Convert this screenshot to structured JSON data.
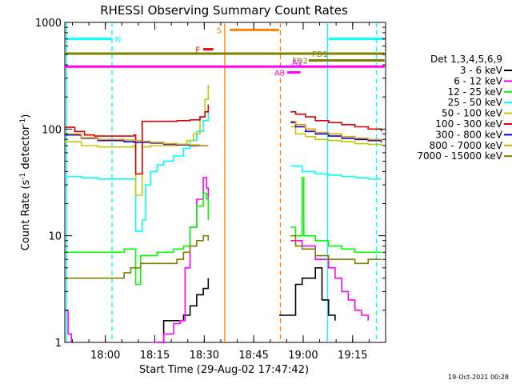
{
  "chart_data": {
    "type": "line",
    "title": "RHESSI Observing Summary Count Rates",
    "xlabel": "Start Time (29-Aug-02 17:47:42)",
    "ylabel_main": "Count Rate (s",
    "ylabel_sup1": "-1",
    "ylabel_mid": " detector",
    "ylabel_sup2": "-1",
    "ylabel_end": ")",
    "x_unit": "minutes after 17:47:42",
    "xlim": [
      0,
      97.3
    ],
    "ylim": [
      1,
      1000
    ],
    "yscale": "log",
    "x_ticks": [
      {
        "label": "18:00",
        "x": 12.3
      },
      {
        "label": "18:15",
        "x": 27.3
      },
      {
        "label": "18:30",
        "x": 42.3
      },
      {
        "label": "18:45",
        "x": 57.3
      },
      {
        "label": "19:00",
        "x": 72.3
      },
      {
        "label": "19:15",
        "x": 87.3
      }
    ],
    "y_ticks": [
      {
        "label": "1",
        "y": 1
      },
      {
        "label": "10",
        "y": 10
      },
      {
        "label": "100",
        "y": 100
      },
      {
        "label": "1000",
        "y": 1000
      }
    ],
    "legend": {
      "title": "Det 1,3,4,5,6,9",
      "placement": "right-outside",
      "entries": [
        {
          "label": "3 - 6 keV",
          "color": "#000000"
        },
        {
          "label": "6 - 12 keV",
          "color": "#ff00ff"
        },
        {
          "label": "12 - 25 keV",
          "color": "#00ff00"
        },
        {
          "label": "25 - 50 keV",
          "color": "#00ffff"
        },
        {
          "label": "50 - 100 keV",
          "color": "#c8c800"
        },
        {
          "label": "100 - 300 keV",
          "color": "#dd0000"
        },
        {
          "label": "300 - 800 keV",
          "color": "#0000dd"
        },
        {
          "label": "800 - 7000 keV",
          "color": "#e8a000"
        },
        {
          "label": "7000 - 15000 keV",
          "color": "#808000"
        }
      ]
    },
    "series": [
      {
        "name": "3 - 6 keV",
        "color": "#000000",
        "segments": [
          [
            [
              28,
              1
            ],
            [
              30,
              1.6
            ],
            [
              33,
              1.6
            ],
            [
              36,
              1.8
            ],
            [
              38,
              2.2
            ],
            [
              40,
              2.8
            ],
            [
              42,
              3.2
            ],
            [
              43.5,
              4
            ]
          ],
          [
            [
              65,
              1.8
            ],
            [
              70,
              3.5
            ],
            [
              72,
              4
            ],
            [
              74,
              4
            ],
            [
              76,
              5
            ],
            [
              78,
              2.5
            ],
            [
              80,
              1.8
            ],
            [
              82,
              1.6
            ]
          ]
        ]
      },
      {
        "name": "6 - 12 keV",
        "color": "#ff00ff",
        "segments": [
          [
            [
              0,
              2
            ],
            [
              1,
              1.2
            ],
            [
              2,
              1
            ]
          ],
          [
            [
              26,
              1
            ],
            [
              30,
              1.2
            ],
            [
              33,
              1.5
            ],
            [
              35,
              1.6
            ],
            [
              36.5,
              5
            ],
            [
              38,
              12
            ],
            [
              40,
              22
            ],
            [
              42,
              35
            ],
            [
              43,
              28
            ],
            [
              43.5,
              18
            ]
          ],
          [
            [
              68.5,
              9
            ],
            [
              72,
              8
            ],
            [
              76,
              6
            ],
            [
              80,
              5
            ],
            [
              82,
              4
            ],
            [
              84,
              3
            ],
            [
              86,
              2.5
            ],
            [
              88,
              2
            ],
            [
              90,
              1.8
            ],
            [
              92,
              1.6
            ]
          ]
        ]
      },
      {
        "name": "12 - 25 keV",
        "color": "#00ff00",
        "segments": [
          [
            [
              0,
              7
            ],
            [
              5,
              7
            ],
            [
              10,
              7
            ],
            [
              15,
              7
            ],
            [
              18,
              7.5
            ],
            [
              20,
              7.5
            ],
            [
              21,
              7.5
            ],
            [
              21.5,
              3.5
            ],
            [
              22.5,
              3.5
            ],
            [
              23,
              6.5
            ],
            [
              28,
              7
            ],
            [
              33,
              7.5
            ],
            [
              36,
              8
            ],
            [
              38,
              12
            ],
            [
              40,
              19
            ],
            [
              42,
              25
            ],
            [
              43,
              22
            ],
            [
              43.5,
              14
            ]
          ],
          [
            [
              68.5,
              12
            ],
            [
              70,
              10
            ],
            [
              72,
              35
            ],
            [
              72.5,
              10
            ],
            [
              76,
              9
            ],
            [
              80,
              8
            ],
            [
              84,
              7.5
            ],
            [
              88,
              7
            ],
            [
              92,
              7
            ],
            [
              96,
              7
            ]
          ]
        ]
      },
      {
        "name": "25 - 50 keV",
        "color": "#00ffff",
        "segments": [
          [
            [
              0,
              36
            ],
            [
              5,
              35
            ],
            [
              10,
              34
            ],
            [
              15,
              34
            ],
            [
              18,
              34
            ],
            [
              20,
              34
            ],
            [
              21,
              34
            ],
            [
              21.5,
              11
            ],
            [
              23,
              11
            ],
            [
              23.5,
              14
            ],
            [
              24.5,
              30
            ],
            [
              26,
              40
            ],
            [
              28,
              46
            ],
            [
              30,
              50
            ],
            [
              33,
              56
            ],
            [
              36,
              66
            ],
            [
              38,
              78
            ],
            [
              40,
              95
            ],
            [
              42,
              120
            ],
            [
              43.5,
              150
            ]
          ],
          [
            [
              68.5,
              45
            ],
            [
              72,
              40
            ],
            [
              76,
              38
            ],
            [
              80,
              37
            ],
            [
              84,
              36
            ],
            [
              88,
              35
            ],
            [
              92,
              34
            ],
            [
              96,
              34
            ]
          ]
        ]
      },
      {
        "name": "50 - 100 keV",
        "color": "#c8c800",
        "segments": [
          [
            [
              0,
              76
            ],
            [
              5,
              70
            ],
            [
              10,
              68
            ],
            [
              15,
              68
            ],
            [
              18,
              68
            ],
            [
              21,
              70
            ],
            [
              21.5,
              24
            ],
            [
              23,
              24
            ],
            [
              23.5,
              68
            ],
            [
              26,
              70
            ],
            [
              30,
              70
            ],
            [
              34,
              72
            ],
            [
              37,
              78
            ],
            [
              39,
              90
            ],
            [
              41,
              130
            ],
            [
              42.5,
              190
            ],
            [
              43.5,
              260
            ]
          ],
          [
            [
              68.5,
              105
            ],
            [
              70,
              90
            ],
            [
              73,
              85
            ],
            [
              76,
              80
            ],
            [
              80,
              78
            ],
            [
              84,
              76
            ],
            [
              88,
              73
            ],
            [
              92,
              72
            ],
            [
              96,
              70
            ]
          ]
        ]
      },
      {
        "name": "100 - 300 keV",
        "color": "#dd0000",
        "segments": [
          [
            [
              0,
              104
            ],
            [
              3,
              95
            ],
            [
              6,
              88
            ],
            [
              9,
              86
            ],
            [
              12,
              86
            ],
            [
              15,
              86
            ],
            [
              18,
              86
            ],
            [
              21,
              88
            ],
            [
              21.5,
              38
            ],
            [
              23,
              38
            ],
            [
              23.5,
              118
            ],
            [
              26,
              118
            ],
            [
              30,
              118
            ],
            [
              34,
              120
            ],
            [
              38,
              122
            ],
            [
              41,
              130
            ],
            [
              42.5,
              145
            ],
            [
              43.5,
              170
            ]
          ],
          [
            [
              68.5,
              145
            ],
            [
              70,
              138
            ],
            [
              73,
              130
            ],
            [
              76,
              120
            ],
            [
              80,
              115
            ],
            [
              84,
              110
            ],
            [
              88,
              105
            ],
            [
              92,
              100
            ],
            [
              96,
              95
            ]
          ]
        ]
      },
      {
        "name": "300 - 800 keV",
        "color": "#0000dd",
        "segments": [
          [
            [
              0,
              88
            ],
            [
              5,
              82
            ],
            [
              10,
              78
            ],
            [
              15,
              78
            ],
            [
              18,
              76
            ],
            [
              21,
              75
            ],
            [
              23,
              75
            ],
            [
              26,
              74
            ],
            [
              30,
              72
            ],
            [
              34,
              71
            ],
            [
              38,
              70
            ],
            [
              41,
              70
            ],
            [
              43.5,
              70
            ]
          ],
          [
            [
              68.5,
              115
            ],
            [
              70,
              105
            ],
            [
              73,
              95
            ],
            [
              76,
              90
            ],
            [
              80,
              86
            ],
            [
              84,
              82
            ],
            [
              88,
              80
            ],
            [
              92,
              78
            ],
            [
              96,
              75
            ]
          ]
        ]
      },
      {
        "name": "800 - 7000 keV",
        "color": "#e8a000",
        "segments": [
          [
            [
              0,
              90
            ],
            [
              5,
              83
            ],
            [
              10,
              80
            ],
            [
              15,
              80
            ],
            [
              18,
              79
            ],
            [
              21,
              78
            ],
            [
              23,
              77
            ],
            [
              26,
              75
            ],
            [
              30,
              73
            ],
            [
              34,
              72
            ],
            [
              38,
              71
            ],
            [
              41,
              70
            ],
            [
              43.5,
              70
            ]
          ],
          [
            [
              68.5,
              118
            ],
            [
              70,
              110
            ],
            [
              73,
              100
            ],
            [
              76,
              93
            ],
            [
              80,
              90
            ],
            [
              84,
              85
            ],
            [
              88,
              82
            ],
            [
              92,
              80
            ],
            [
              96,
              78
            ]
          ]
        ]
      },
      {
        "name": "7000 - 15000 keV",
        "color": "#808000",
        "segments": [
          [
            [
              0,
              4
            ],
            [
              5,
              4
            ],
            [
              10,
              4
            ],
            [
              15,
              4
            ],
            [
              18,
              4.5
            ],
            [
              20,
              5
            ],
            [
              21.5,
              5
            ],
            [
              23,
              5.5
            ],
            [
              26,
              5.5
            ],
            [
              30,
              5.5
            ],
            [
              34,
              6
            ],
            [
              36,
              7
            ],
            [
              38,
              8
            ],
            [
              40,
              9
            ],
            [
              42,
              10
            ],
            [
              43.5,
              9
            ]
          ],
          [
            [
              68.5,
              10
            ],
            [
              70,
              8
            ],
            [
              72,
              7.5
            ],
            [
              76,
              6.5
            ],
            [
              80,
              6
            ],
            [
              84,
              6
            ],
            [
              88,
              5.5
            ],
            [
              92,
              6
            ],
            [
              96,
              6
            ]
          ]
        ]
      }
    ],
    "annotations": [
      {
        "label": "N",
        "type": "bar",
        "x0": 0.5,
        "x1": 14.3,
        "y": 700,
        "color": "#00ffff"
      },
      {
        "label": "",
        "type": "bar",
        "x0": 80,
        "x1": 97,
        "y": 700,
        "color": "#00ffff"
      },
      {
        "label": "F",
        "type": "bar",
        "x0": 42,
        "x1": 45,
        "y": 560,
        "color": "#ff0000"
      },
      {
        "label": "S",
        "type": "bar",
        "x0": 50,
        "x1": 65,
        "y": 850,
        "color": "#ff8000"
      },
      {
        "label": "FD1",
        "type": "bar",
        "x0": 0,
        "x1": 97,
        "y": 510,
        "color": "#808000"
      },
      {
        "label": "FD2",
        "type": "bar",
        "x0": 74,
        "x1": 97,
        "y": 440,
        "color": "#808000"
      },
      {
        "label": "A1",
        "type": "bar",
        "x0": 0,
        "x1": 97,
        "y": 385,
        "color": "#ff00ff"
      },
      {
        "label": "A3",
        "type": "bar",
        "x0": 67.5,
        "x1": 71.5,
        "y": 340,
        "color": "#ff00ff"
      }
    ],
    "vlines": [
      {
        "x": 0.5,
        "color": "#00ffff",
        "dashed": false
      },
      {
        "x": 14.3,
        "color": "#00ffff",
        "dashed": true
      },
      {
        "x": 48.5,
        "color": "#ff8000",
        "dashed": false
      },
      {
        "x": 65.4,
        "color": "#ff8000",
        "dashed": true
      },
      {
        "x": 79.7,
        "color": "#00ffff",
        "dashed": false
      },
      {
        "x": 94.5,
        "color": "#00ffff",
        "dashed": true
      }
    ],
    "timestamp": "19-Oct-2021 00:28"
  }
}
